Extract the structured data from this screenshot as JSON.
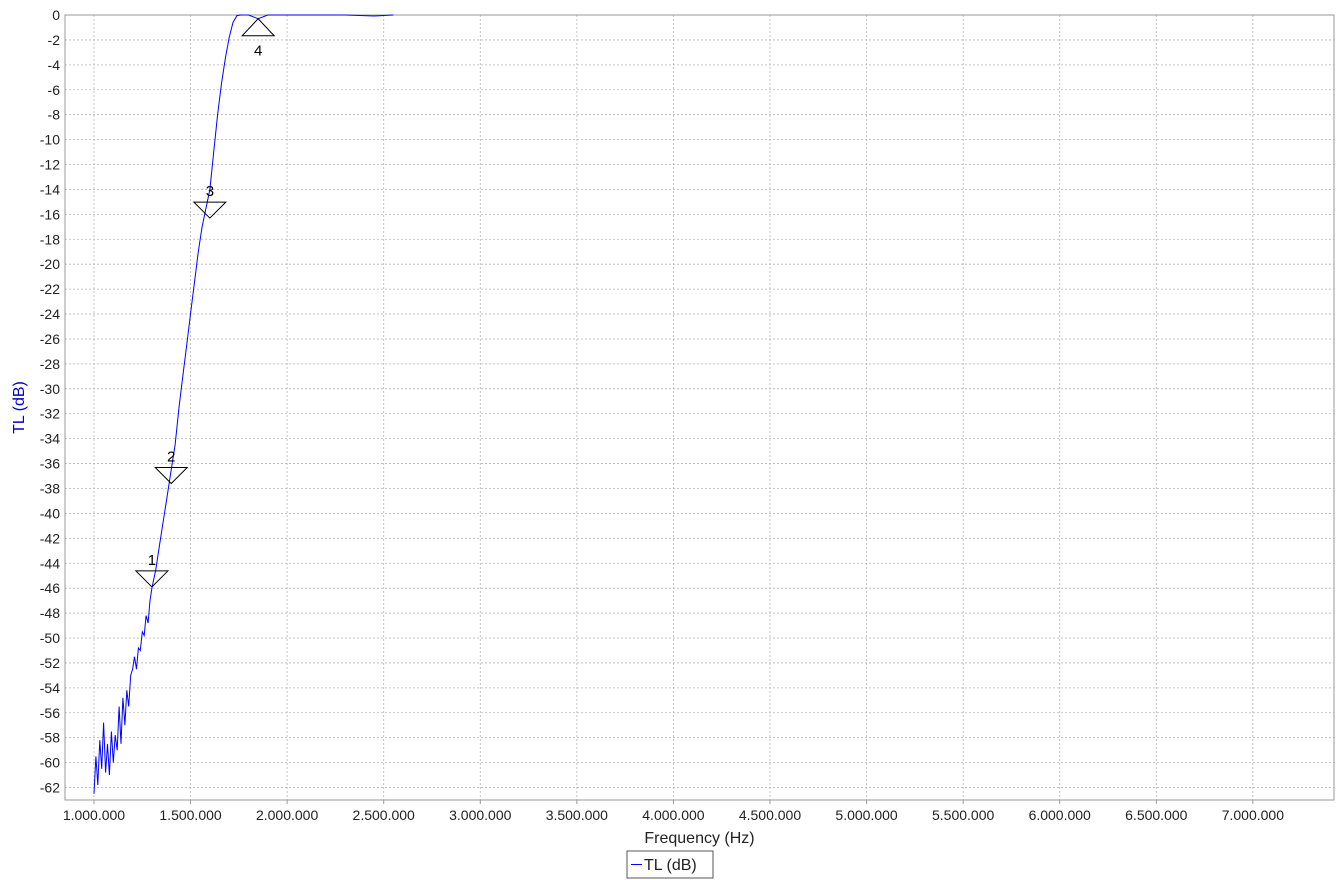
{
  "chart_data": {
    "type": "line",
    "xlabel": "Frequency (Hz)",
    "ylabel": "TL (dB)",
    "xlim": [
      850000,
      7420000
    ],
    "ylim": [
      -63,
      0
    ],
    "x_ticks": [
      1000000,
      1500000,
      2000000,
      2500000,
      3000000,
      3500000,
      4000000,
      4500000,
      5000000,
      5500000,
      6000000,
      6500000,
      7000000
    ],
    "x_tick_labels": [
      "1.000.000",
      "1.500.000",
      "2.000.000",
      "2.500.000",
      "3.000.000",
      "3.500.000",
      "4.000.000",
      "4.500.000",
      "5.000.000",
      "5.500.000",
      "6.000.000",
      "6.500.000",
      "7.000.000"
    ],
    "y_ticks": [
      0,
      -2,
      -4,
      -6,
      -8,
      -10,
      -12,
      -14,
      -16,
      -18,
      -20,
      -22,
      -24,
      -26,
      -28,
      -30,
      -32,
      -34,
      -36,
      -38,
      -40,
      -42,
      -44,
      -46,
      -48,
      -50,
      -52,
      -54,
      -56,
      -58,
      -60,
      -62
    ],
    "y_tick_labels": [
      "0",
      "-2",
      "-4",
      "-6",
      "-8",
      "-10",
      "-12",
      "-14",
      "-16",
      "-18",
      "-20",
      "-22",
      "-24",
      "-26",
      "-28",
      "-30",
      "-32",
      "-34",
      "-36",
      "-38",
      "-40",
      "-42",
      "-44",
      "-46",
      "-48",
      "-50",
      "-52",
      "-54",
      "-56",
      "-58",
      "-60",
      "-62"
    ],
    "grid": true,
    "legend_position": "bottom-center",
    "series": [
      {
        "name": "TL (dB)",
        "color": "#0000ff",
        "x": [
          1000000,
          1010000,
          1020000,
          1030000,
          1040000,
          1050000,
          1060000,
          1070000,
          1080000,
          1090000,
          1100000,
          1110000,
          1120000,
          1130000,
          1140000,
          1150000,
          1160000,
          1170000,
          1180000,
          1190000,
          1200000,
          1210000,
          1220000,
          1230000,
          1240000,
          1250000,
          1260000,
          1270000,
          1280000,
          1290000,
          1300000,
          1320000,
          1340000,
          1360000,
          1380000,
          1400000,
          1420000,
          1440000,
          1460000,
          1480000,
          1500000,
          1520000,
          1540000,
          1560000,
          1580000,
          1600000,
          1620000,
          1640000,
          1660000,
          1680000,
          1700000,
          1720000,
          1740000,
          1760000,
          1800000,
          1850000,
          1900000,
          1950000,
          2100000,
          2300000,
          2450000,
          2550000
        ],
        "y": [
          -62.5,
          -59.5,
          -61.8,
          -58.2,
          -60.5,
          -56.8,
          -60.8,
          -58.5,
          -61.0,
          -57.5,
          -60.0,
          -57.8,
          -59.0,
          -55.5,
          -58.5,
          -54.8,
          -57.0,
          -54.2,
          -55.5,
          -53.0,
          -52.5,
          -51.5,
          -52.5,
          -50.8,
          -51.0,
          -49.5,
          -49.8,
          -48.2,
          -48.8,
          -47.0,
          -46.0,
          -44.5,
          -42.5,
          -40.5,
          -38.5,
          -36.5,
          -34.5,
          -31.5,
          -29.0,
          -26.5,
          -24.0,
          -21.5,
          -19.0,
          -17.0,
          -15.5,
          -14.0,
          -11.0,
          -8.0,
          -5.5,
          -3.5,
          -1.8,
          -0.6,
          -0.05,
          0,
          0,
          -0.3,
          0,
          0,
          0,
          0,
          -0.08,
          0
        ]
      }
    ],
    "markers": [
      {
        "label": "1",
        "x": 1300000,
        "y": -45.9,
        "direction": "down"
      },
      {
        "label": "2",
        "x": 1400000,
        "y": -37.6,
        "direction": "down"
      },
      {
        "label": "3",
        "x": 1600000,
        "y": -16.3,
        "direction": "down"
      },
      {
        "label": "4",
        "x": 1850000,
        "y": -0.3,
        "direction": "up"
      }
    ]
  }
}
